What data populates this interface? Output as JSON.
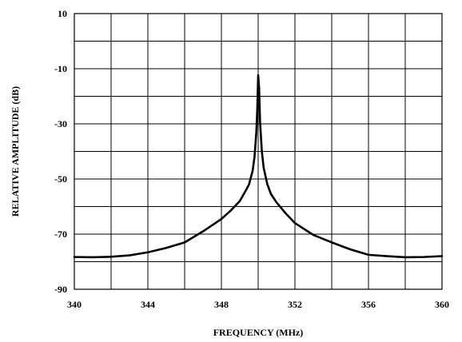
{
  "chart_data": {
    "type": "line",
    "title": "",
    "xlabel": "FREQUENCY (MHz)",
    "ylabel": "RELATIVE AMPLITUDE (dB)",
    "xlim": [
      340,
      360
    ],
    "ylim": [
      -90,
      10
    ],
    "x_ticks": [
      340,
      344,
      348,
      352,
      356,
      360
    ],
    "y_ticks": [
      10,
      -10,
      -30,
      -50,
      -70,
      -90
    ],
    "x_grid_step": 2,
    "y_grid_step": 10,
    "grid": true,
    "legend": "none",
    "line_color": "#000000",
    "series": [
      {
        "x": [
          340,
          341,
          342,
          343,
          344,
          345,
          346,
          347,
          348,
          348.5,
          349,
          349.3,
          349.5,
          349.7,
          349.8,
          349.9,
          349.95,
          350.0,
          350.05,
          350.1,
          350.2,
          350.3,
          350.5,
          350.7,
          351,
          351.5,
          352,
          353,
          354,
          355,
          356,
          357,
          358,
          359,
          360
        ],
        "y": [
          -78.3,
          -78.4,
          -78.2,
          -77.7,
          -76.6,
          -75.0,
          -73.0,
          -69.0,
          -64.5,
          -61.5,
          -58.0,
          -54.5,
          -52.0,
          -47.0,
          -42.0,
          -33.0,
          -25.0,
          -12.3,
          -17.0,
          -29.0,
          -40.0,
          -46.0,
          -52.0,
          -55.5,
          -58.5,
          -62.5,
          -66.0,
          -70.3,
          -73.0,
          -75.5,
          -77.5,
          -78.0,
          -78.4,
          -78.3,
          -78.0
        ]
      }
    ]
  }
}
